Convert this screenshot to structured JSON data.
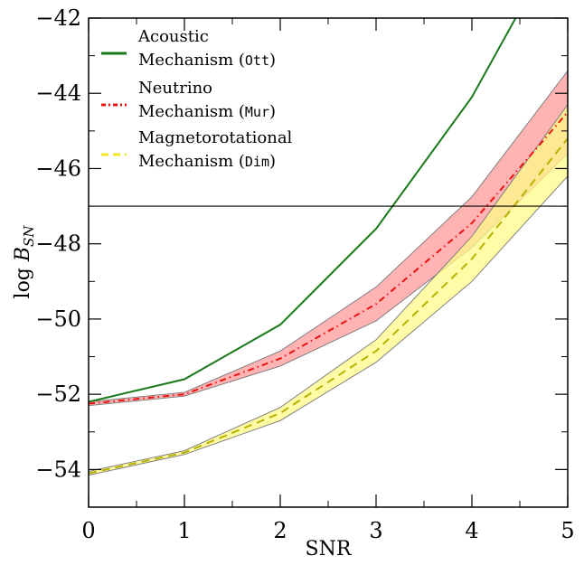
{
  "chart_data": {
    "type": "line",
    "title": "",
    "xlabel": "SNR",
    "ylabel": "log",
    "ylabel_symbol": "B",
    "ylabel_sub": "SN",
    "xlim": [
      0,
      5
    ],
    "ylim": [
      -55,
      -42
    ],
    "xticks": [
      0,
      1,
      2,
      3,
      4,
      5
    ],
    "xtick_labels": [
      "0",
      "1",
      "2",
      "3",
      "4",
      "5"
    ],
    "yticks": [
      -54,
      -52,
      -50,
      -48,
      -46,
      -44,
      -42
    ],
    "ytick_labels": [
      "−54",
      "−52",
      "−50",
      "−48",
      "−46",
      "−44",
      "−42"
    ],
    "x": [
      0,
      1,
      2,
      3,
      4,
      5
    ],
    "threshold": -47,
    "legend_position": "upper-left",
    "series": [
      {
        "legend_text": "Acoustic",
        "legend_text2": "Mechanism",
        "legend_code": "Ott",
        "color": "#1a7a1a",
        "style": "solid",
        "values": [
          -52.2,
          -51.6,
          -50.15,
          -47.6,
          -44.1,
          -39.5
        ]
      },
      {
        "legend_text": "Neutrino",
        "legend_text2": "Mechanism",
        "legend_code": "Mur",
        "color": "#ee1111",
        "band_color": "#ff9a9a",
        "style": "dashdot",
        "values": [
          -52.25,
          -52.0,
          -51.05,
          -49.6,
          -47.45,
          -44.5
        ],
        "band_low": [
          -52.3,
          -52.05,
          -51.25,
          -50.05,
          -48.1,
          -45.6
        ],
        "band_high": [
          -52.2,
          -51.95,
          -50.85,
          -49.15,
          -46.75,
          -43.4
        ]
      },
      {
        "legend_text": "Magnetorotational",
        "legend_text2": "Mechanism",
        "legend_code": "Dim",
        "color": "#f2e82a",
        "line_color": "#b8b200",
        "band_color": "#fffa8a",
        "style": "dashed",
        "values": [
          -54.1,
          -53.55,
          -52.5,
          -50.85,
          -48.4,
          -45.2
        ],
        "band_low": [
          -54.15,
          -53.6,
          -52.7,
          -51.15,
          -49.0,
          -46.2
        ],
        "band_high": [
          -54.05,
          -53.5,
          -52.35,
          -50.55,
          -47.8,
          -44.3
        ]
      }
    ]
  }
}
